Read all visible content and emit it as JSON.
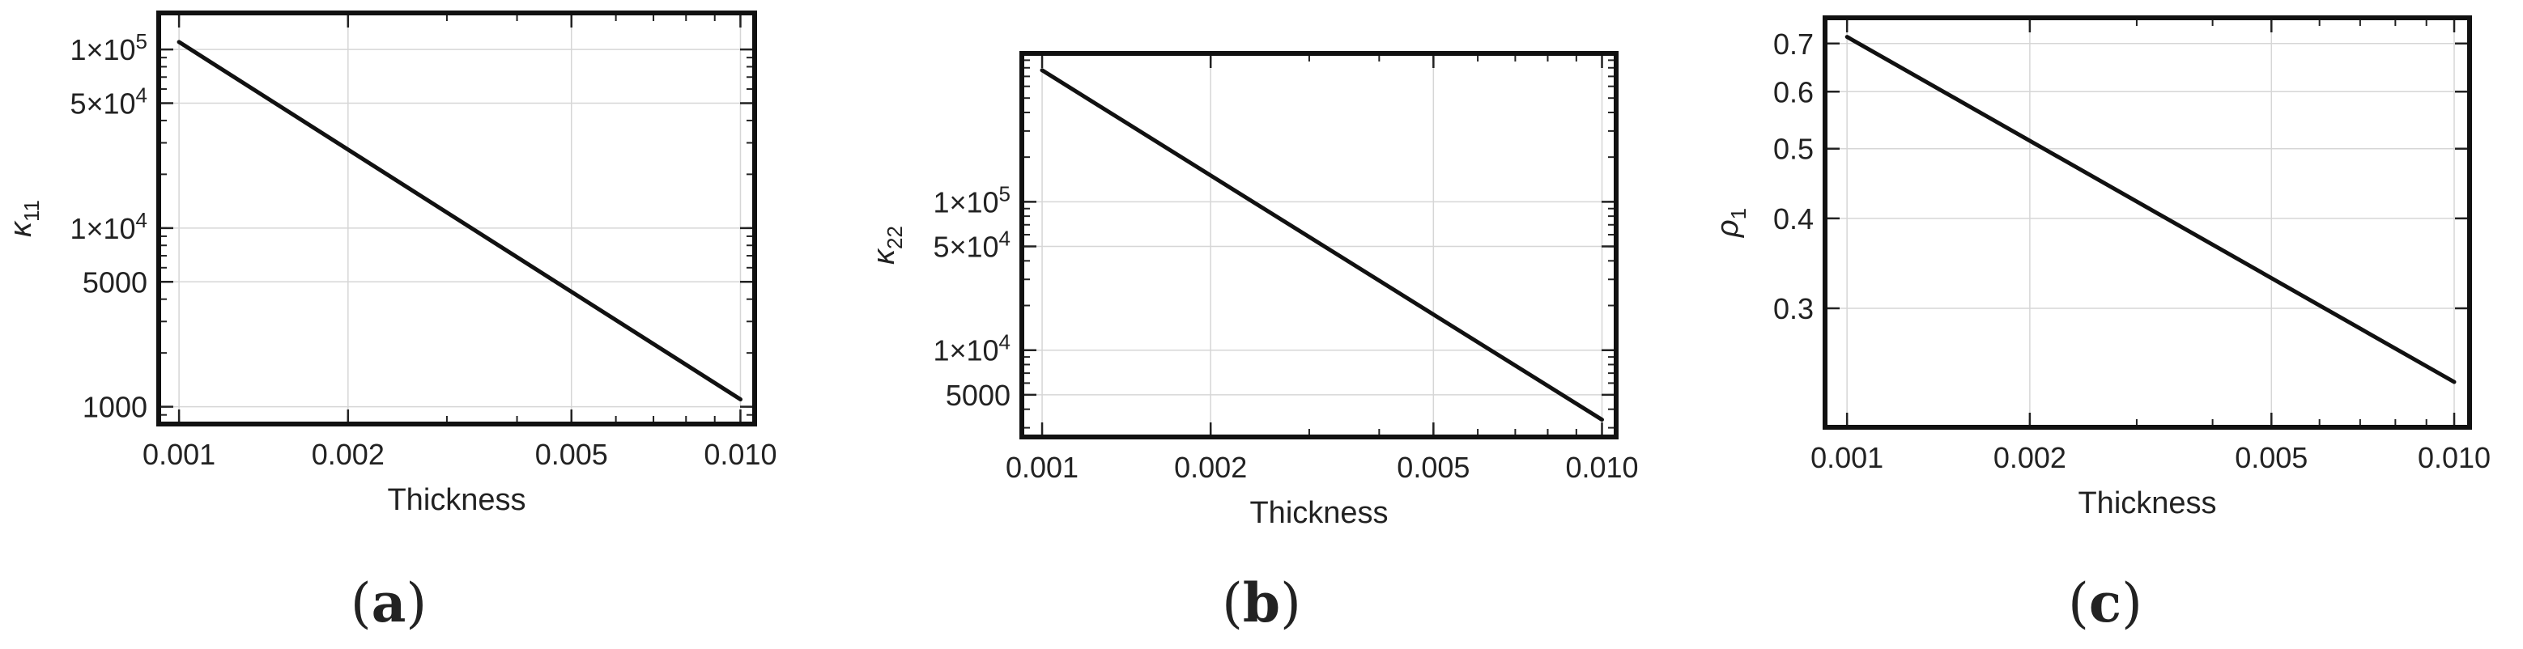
{
  "chart_data": [
    {
      "type": "line",
      "panel_label": "a",
      "xlabel": "Thickness",
      "ylabel_symbol": "κ",
      "ylabel_subscript": "11",
      "x_scale": "log",
      "y_scale": "log",
      "xlim": [
        0.00092,
        0.0106
      ],
      "ylim": [
        800,
        160000
      ],
      "grid": true,
      "x_ticks": [
        {
          "value": 0.001,
          "label": "0.001"
        },
        {
          "value": 0.002,
          "label": "0.002"
        },
        {
          "value": 0.005,
          "label": "0.005"
        },
        {
          "value": 0.01,
          "label": "0.010"
        }
      ],
      "y_ticks": [
        {
          "value": 1000,
          "label": "1000"
        },
        {
          "value": 5000,
          "label": "5000"
        },
        {
          "value": 10000,
          "mantissa": "1",
          "times": "×",
          "base": "10",
          "exp": "4"
        },
        {
          "value": 50000,
          "mantissa": "5",
          "times": "×",
          "base": "10",
          "exp": "4"
        },
        {
          "value": 100000,
          "mantissa": "1",
          "times": "×",
          "base": "10",
          "exp": "5"
        }
      ],
      "series": [
        {
          "x": [
            0.001,
            0.01
          ],
          "y": [
            110000,
            1100
          ]
        }
      ]
    },
    {
      "type": "line",
      "panel_label": "b",
      "xlabel": "Thickness",
      "ylabel_symbol": "κ",
      "ylabel_subscript": "22",
      "x_scale": "log",
      "y_scale": "log",
      "xlim": [
        0.00092,
        0.0106
      ],
      "ylim": [
        2600,
        1000000
      ],
      "grid": true,
      "x_ticks": [
        {
          "value": 0.001,
          "label": "0.001"
        },
        {
          "value": 0.002,
          "label": "0.002"
        },
        {
          "value": 0.005,
          "label": "0.005"
        },
        {
          "value": 0.01,
          "label": "0.010"
        }
      ],
      "y_ticks": [
        {
          "value": 5000,
          "label": "5000"
        },
        {
          "value": 10000,
          "mantissa": "1",
          "times": "×",
          "base": "10",
          "exp": "4"
        },
        {
          "value": 50000,
          "mantissa": "5",
          "times": "×",
          "base": "10",
          "exp": "4"
        },
        {
          "value": 100000,
          "mantissa": "1",
          "times": "×",
          "base": "10",
          "exp": "5"
        }
      ],
      "series": [
        {
          "x": [
            0.001,
            0.01
          ],
          "y": [
            770000,
            3400
          ]
        }
      ]
    },
    {
      "type": "line",
      "panel_label": "c",
      "xlabel": "Thickness",
      "ylabel_symbol": "ρ",
      "ylabel_subscript": "1",
      "x_scale": "log",
      "y_scale": "log",
      "xlim": [
        0.00092,
        0.0106
      ],
      "ylim": [
        0.205,
        0.76
      ],
      "grid": true,
      "x_ticks": [
        {
          "value": 0.001,
          "label": "0.001"
        },
        {
          "value": 0.002,
          "label": "0.002"
        },
        {
          "value": 0.005,
          "label": "0.005"
        },
        {
          "value": 0.01,
          "label": "0.010"
        }
      ],
      "y_ticks": [
        {
          "value": 0.3,
          "label": "0.3"
        },
        {
          "value": 0.4,
          "label": "0.4"
        },
        {
          "value": 0.5,
          "label": "0.5"
        },
        {
          "value": 0.6,
          "label": "0.6"
        },
        {
          "value": 0.7,
          "label": "0.7"
        }
      ],
      "series": [
        {
          "x": [
            0.001,
            0.01
          ],
          "y": [
            0.715,
            0.237
          ]
        }
      ]
    }
  ]
}
